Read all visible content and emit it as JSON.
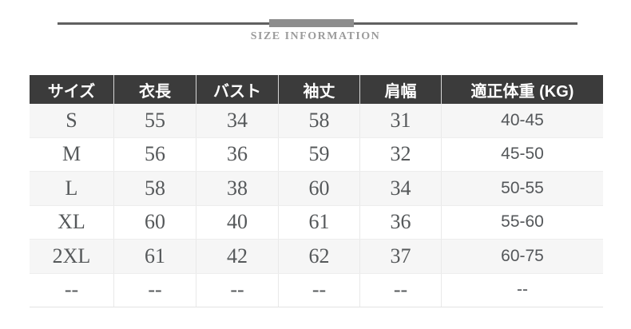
{
  "banner": {
    "title": "SIZE INFORMATION",
    "line_color": "#606060",
    "bar_color": "#8d8d8d",
    "title_color": "#9b9b9b"
  },
  "table_style": {
    "header_bg": "#3b3b3b",
    "header_text_color": "#ffffff",
    "stripe_color": "#f6f6f6",
    "body_text_color": "#55585a",
    "divider_color": "#e9e9e9"
  },
  "chart_data": {
    "type": "table",
    "title": "SIZE INFORMATION",
    "columns": [
      "サイズ",
      "衣長",
      "バスト",
      "袖丈",
      "肩幅",
      "適正体重 (KG)"
    ],
    "rows": [
      [
        "S",
        "55",
        "34",
        "58",
        "31",
        "40-45"
      ],
      [
        "M",
        "56",
        "36",
        "59",
        "32",
        "45-50"
      ],
      [
        "L",
        "58",
        "38",
        "60",
        "34",
        "50-55"
      ],
      [
        "XL",
        "60",
        "40",
        "61",
        "36",
        "55-60"
      ],
      [
        "2XL",
        "61",
        "42",
        "62",
        "37",
        "60-75"
      ],
      [
        "--",
        "--",
        "--",
        "--",
        "--",
        "--"
      ]
    ]
  }
}
